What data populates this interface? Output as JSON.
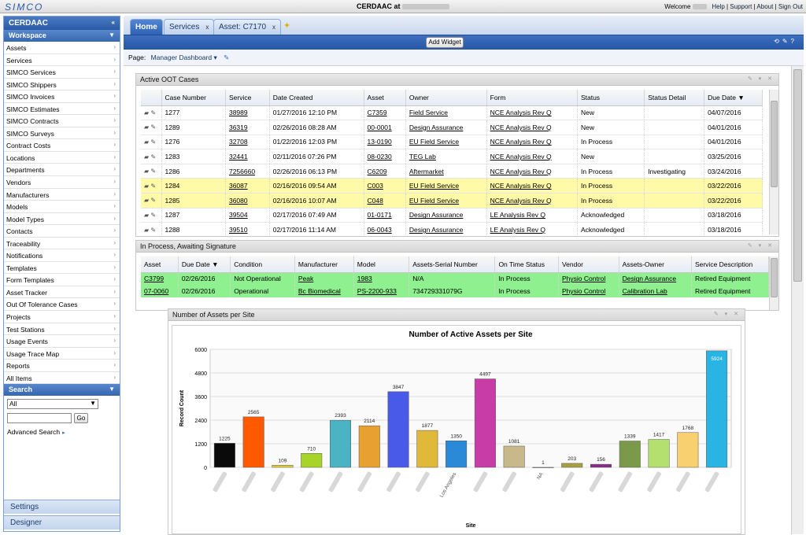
{
  "topbar": {
    "logo": "SIMCO",
    "title": "CERDAAC at",
    "welcome": "Welcome",
    "links": [
      "Help",
      "Support",
      "About",
      "Sign Out"
    ]
  },
  "sidebar": {
    "header": "CERDAAC",
    "workspace": "Workspace",
    "items": [
      "Assets",
      "Services",
      "SIMCO Services",
      "SIMCO Shippers",
      "SIMCO Invoices",
      "SIMCO Estimates",
      "SIMCO Contracts",
      "SIMCO Surveys",
      "Contract Costs",
      "Locations",
      "Departments",
      "Vendors",
      "Manufacturers",
      "Models",
      "Model Types",
      "Contacts",
      "Traceability",
      "Notifications",
      "Templates",
      "Form Templates",
      "Asset Tracker",
      "Out Of Tolerance Cases",
      "Projects",
      "Test Stations",
      "Usage Events",
      "Usage Trace Map",
      "Reports",
      "All Items"
    ],
    "search_label": "Search",
    "search_select": "All",
    "go_label": "Go",
    "advanced_search": "Advanced Search",
    "settings": "Settings",
    "designer": "Designer"
  },
  "tabs": [
    {
      "label": "Home"
    },
    {
      "label": "Services"
    },
    {
      "label": "Asset: C7170"
    }
  ],
  "toolbar": {
    "add_widget": "Add Widget"
  },
  "page": {
    "label": "Page:",
    "value": "Manager Dashboard"
  },
  "oot": {
    "title": "Active OOT Cases",
    "columns": [
      "Case Number",
      "Service",
      "Date Created",
      "Asset",
      "Owner",
      "Form",
      "Status",
      "Status Detail",
      "Due Date"
    ],
    "rows": [
      {
        "case": "1277",
        "service": "38989",
        "date": "01/27/2016 12:10 PM",
        "asset": "C7359",
        "owner": "Field Service",
        "form": "NCE Analysis Rev Q",
        "status": "New",
        "detail": "",
        "due": "04/07/2016",
        "hl": false
      },
      {
        "case": "1289",
        "service": "36319",
        "date": "02/26/2016 08:28 AM",
        "asset": "00-0001",
        "owner": "Design Assurance",
        "form": "NCE Analysis Rev Q",
        "status": "New",
        "detail": "",
        "due": "04/01/2016",
        "hl": false
      },
      {
        "case": "1276",
        "service": "32708",
        "date": "01/22/2016 12:03 PM",
        "asset": "13-0190",
        "owner": "EU Field Service",
        "form": "NCE Analysis Rev Q",
        "status": "In Process",
        "detail": "",
        "due": "04/01/2016",
        "hl": false
      },
      {
        "case": "1283",
        "service": "32441",
        "date": "02/11/2016 07:26 PM",
        "asset": "08-0230",
        "owner": "TEG Lab",
        "form": "NCE Analysis Rev Q",
        "status": "New",
        "detail": "",
        "due": "03/25/2016",
        "hl": false
      },
      {
        "case": "1286",
        "service": "7256660",
        "date": "02/26/2016 06:13 PM",
        "asset": "C6209",
        "owner": "Aftermarket",
        "form": "NCE Analysis Rev Q",
        "status": "In Process",
        "detail": "Investigating",
        "due": "03/24/2016",
        "hl": false
      },
      {
        "case": "1284",
        "service": "36087",
        "date": "02/16/2016 09:54 AM",
        "asset": "C003",
        "owner": "EU Field Service",
        "form": "NCE Analysis Rev Q",
        "status": "In Process",
        "detail": "",
        "due": "03/22/2016",
        "hl": true
      },
      {
        "case": "1285",
        "service": "36080",
        "date": "02/16/2016 10:07 AM",
        "asset": "C048",
        "owner": "EU Field Service",
        "form": "NCE Analysis Rev Q",
        "status": "In Process",
        "detail": "",
        "due": "03/22/2016",
        "hl": true
      },
      {
        "case": "1287",
        "service": "39504",
        "date": "02/17/2016 07:49 AM",
        "asset": "01-0171",
        "owner": "Design Assurance",
        "form": "LE Analysis Rev Q",
        "status": "Acknowledged",
        "detail": "",
        "due": "03/18/2016",
        "hl": false
      },
      {
        "case": "1288",
        "service": "39510",
        "date": "02/17/2016 11:14 AM",
        "asset": "06-0043",
        "owner": "Design Assurance",
        "form": "LE Analysis Rev Q",
        "status": "Acknowledged",
        "detail": "",
        "due": "03/18/2016",
        "hl": false
      }
    ]
  },
  "inprocess": {
    "title": "In Process, Awaiting Signature",
    "columns": [
      "Asset",
      "Due Date",
      "Condition",
      "Manufacturer",
      "Model",
      "Assets-Serial Number",
      "On Time Status",
      "Vendor",
      "Assets-Owner",
      "Service Description"
    ],
    "rows": [
      {
        "asset": "C3799",
        "due": "02/26/2016",
        "condition": "Not Operational",
        "mfr": "Peak",
        "model": "1983",
        "serial": "N/A",
        "ontime": "In Process",
        "vendor": "Physio Control",
        "owner": "Design Assurance",
        "desc": "Retired Equipment"
      },
      {
        "asset": "07-0060",
        "due": "02/26/2016",
        "condition": "Operational",
        "mfr": "Bc Biomedical",
        "model": "PS-2200-933",
        "serial": "734729331079G",
        "ontime": "In Process",
        "vendor": "Physio Control",
        "owner": "Calibration Lab",
        "desc": "Retired Equipment"
      }
    ]
  },
  "chart_widget": {
    "title": "Number of Assets per Site"
  },
  "chart_data": {
    "type": "bar",
    "title": "Number of Active Assets per Site",
    "xlabel": "Site",
    "ylabel": "Record Count",
    "ylim": [
      0,
      6000
    ],
    "yticks": [
      0,
      1200,
      2400,
      3600,
      4800,
      6000
    ],
    "grid": true,
    "categories": [
      "",
      "",
      "",
      "",
      "",
      "",
      "",
      "",
      "Los Angeles",
      "",
      "",
      "NA",
      "",
      "",
      "",
      "",
      "",
      ""
    ],
    "values": [
      1225,
      2565,
      109,
      710,
      2393,
      2114,
      3847,
      1877,
      1350,
      4497,
      1081,
      1,
      203,
      156,
      1339,
      1417,
      1768,
      5924
    ],
    "colors": [
      "#0a0a0a",
      "#ff5a00",
      "#e8d03a",
      "#a8d42a",
      "#4ab4c4",
      "#e8a030",
      "#4a5ae8",
      "#e0b83a",
      "#2a8ad8",
      "#c83ca8",
      "#c8b88a",
      "#c8c8c8",
      "#a8a040",
      "#8a2a8a",
      "#7a9a4a",
      "#b4e070",
      "#f8d070",
      "#2ab4e4"
    ]
  }
}
